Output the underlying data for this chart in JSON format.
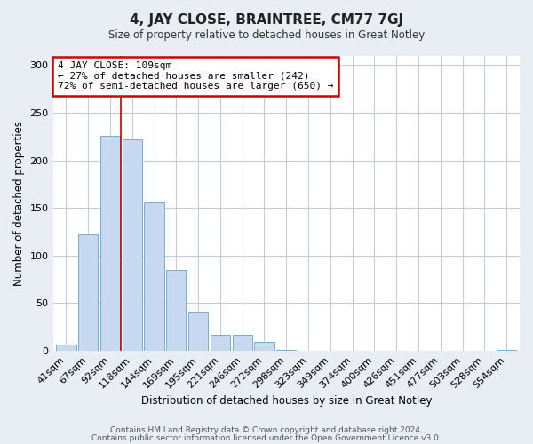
{
  "title": "4, JAY CLOSE, BRAINTREE, CM77 7GJ",
  "subtitle": "Size of property relative to detached houses in Great Notley",
  "xlabel": "Distribution of detached houses by size in Great Notley",
  "ylabel": "Number of detached properties",
  "bar_labels": [
    "41sqm",
    "67sqm",
    "92sqm",
    "118sqm",
    "144sqm",
    "169sqm",
    "195sqm",
    "221sqm",
    "246sqm",
    "272sqm",
    "298sqm",
    "323sqm",
    "349sqm",
    "374sqm",
    "400sqm",
    "426sqm",
    "451sqm",
    "477sqm",
    "503sqm",
    "528sqm",
    "554sqm"
  ],
  "bar_values": [
    7,
    122,
    226,
    222,
    156,
    85,
    41,
    17,
    17,
    9,
    1,
    0,
    0,
    0,
    0,
    0,
    0,
    0,
    0,
    0,
    1
  ],
  "bar_color": "#c6d9f0",
  "bar_edge_color": "#7aadce",
  "ylim": [
    0,
    310
  ],
  "yticks": [
    0,
    50,
    100,
    150,
    200,
    250,
    300
  ],
  "vline_color": "#cc0000",
  "annotation_box_title": "4 JAY CLOSE: 109sqm",
  "annotation_line1": "← 27% of detached houses are smaller (242)",
  "annotation_line2": "72% of semi-detached houses are larger (650) →",
  "annotation_box_color": "#cc0000",
  "footnote1": "Contains HM Land Registry data © Crown copyright and database right 2024.",
  "footnote2": "Contains public sector information licensed under the Open Government Licence v3.0.",
  "background_color": "#e8eef4",
  "plot_bg_color": "#ffffff",
  "grid_color": "#c0cdd8"
}
